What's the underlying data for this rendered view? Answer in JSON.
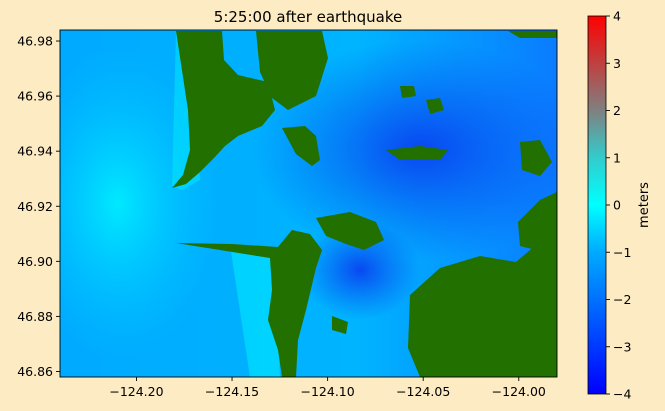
{
  "chart_data": {
    "type": "heatmap",
    "title": "5:25:00 after earthquake",
    "xlim": [
      -124.24,
      -123.98
    ],
    "ylim": [
      46.858,
      46.984
    ],
    "xticks": [
      -124.2,
      -124.15,
      -124.1,
      -124.05,
      -124.0
    ],
    "xtick_labels": [
      "−124.20",
      "−124.15",
      "−124.10",
      "−124.05",
      "−124.00"
    ],
    "yticks": [
      46.86,
      46.88,
      46.9,
      46.92,
      46.94,
      46.96,
      46.98
    ],
    "ytick_labels": [
      "46.86",
      "46.88",
      "46.90",
      "46.92",
      "46.94",
      "46.96",
      "46.98"
    ],
    "colorbar": {
      "label": "meters",
      "range": [
        -4,
        4
      ],
      "ticks": [
        -4,
        -3,
        -2,
        -1,
        0,
        1,
        2,
        3,
        4
      ],
      "tick_labels": [
        "−4",
        "−3",
        "−2",
        "−1",
        "0",
        "1",
        "2",
        "3",
        "4"
      ],
      "colormap": [
        {
          "v": -4,
          "color": "#0000ff"
        },
        {
          "v": -1,
          "color": "#00aaff"
        },
        {
          "v": 0,
          "color": "#00ffff"
        },
        {
          "v": 1,
          "color": "#33cccc"
        },
        {
          "v": 2,
          "color": "#808080"
        },
        {
          "v": 4,
          "color": "#ff0000"
        }
      ]
    },
    "land_color": "#217000",
    "field": {
      "open_ocean_west_m": -0.3,
      "nearshore_m": 0.2,
      "bay_channel_m": -2.5,
      "bay_deep_m": -3.0,
      "inner_bay_east_m": -2.0
    }
  }
}
